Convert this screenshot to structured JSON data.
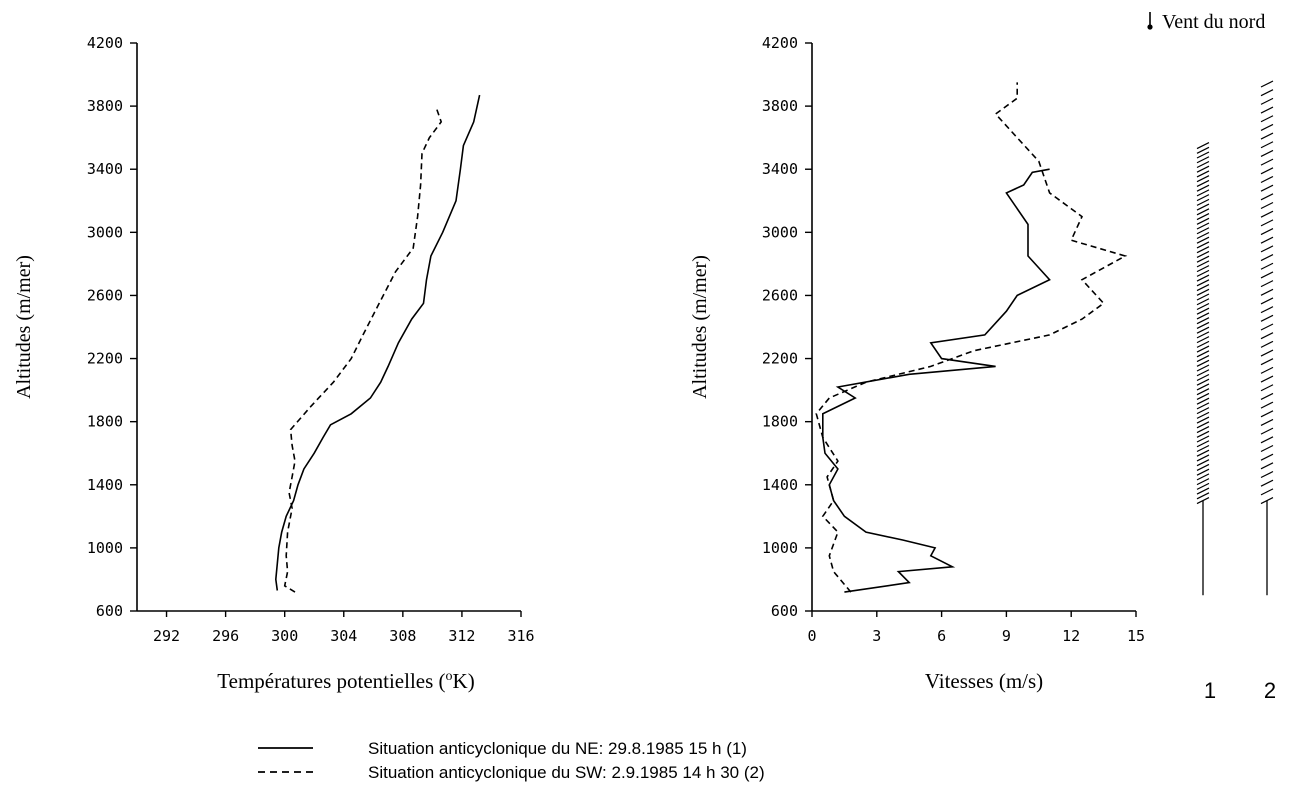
{
  "chart_data": [
    {
      "type": "line",
      "xlabel": "Températures potentielles (",
      "xlabel_sup": "o",
      "xlabel_unit": "K)",
      "ylabel": "Altitudes (m/mer)",
      "xlim": [
        290,
        316
      ],
      "ylim": [
        600,
        4200
      ],
      "x_ticks": [
        "292",
        "296",
        "300",
        "304",
        "308",
        "312",
        "316"
      ],
      "y_ticks": [
        "4200",
        "3800",
        "3400",
        "3000",
        "2600",
        "2200",
        "1800",
        "1400",
        "1000",
        "600"
      ],
      "series": [
        {
          "style": "solid",
          "points": [
            [
              299.5,
              730
            ],
            [
              299.4,
              800
            ],
            [
              299.5,
              900
            ],
            [
              299.6,
              1000
            ],
            [
              299.8,
              1100
            ],
            [
              300.1,
              1200
            ],
            [
              300.6,
              1300
            ],
            [
              300.9,
              1400
            ],
            [
              301.3,
              1500
            ],
            [
              302.0,
              1600
            ],
            [
              302.6,
              1700
            ],
            [
              303.1,
              1780
            ],
            [
              304.5,
              1850
            ],
            [
              305.8,
              1950
            ],
            [
              306.5,
              2050
            ],
            [
              307.0,
              2150
            ],
            [
              307.7,
              2300
            ],
            [
              308.6,
              2450
            ],
            [
              309.4,
              2550
            ],
            [
              309.6,
              2700
            ],
            [
              309.9,
              2850
            ],
            [
              310.7,
              3000
            ],
            [
              311.6,
              3200
            ],
            [
              311.9,
              3400
            ],
            [
              312.1,
              3550
            ],
            [
              312.8,
              3700
            ],
            [
              313.2,
              3870
            ]
          ]
        },
        {
          "style": "dashed",
          "points": [
            [
              300.7,
              720
            ],
            [
              300.0,
              760
            ],
            [
              300.2,
              850
            ],
            [
              300.1,
              950
            ],
            [
              300.2,
              1100
            ],
            [
              300.5,
              1250
            ],
            [
              300.3,
              1350
            ],
            [
              300.5,
              1450
            ],
            [
              300.7,
              1550
            ],
            [
              300.5,
              1650
            ],
            [
              300.4,
              1750
            ],
            [
              301.8,
              1900
            ],
            [
              303.3,
              2050
            ],
            [
              304.5,
              2200
            ],
            [
              305.3,
              2350
            ],
            [
              306.4,
              2550
            ],
            [
              307.5,
              2750
            ],
            [
              308.7,
              2900
            ],
            [
              309.0,
              3100
            ],
            [
              309.2,
              3300
            ],
            [
              309.3,
              3500
            ],
            [
              309.8,
              3600
            ],
            [
              310.6,
              3700
            ],
            [
              310.3,
              3780
            ]
          ]
        }
      ]
    },
    {
      "type": "line",
      "xlabel": "Vitesses (m/s)",
      "ylabel": "Altitudes (m/mer)",
      "xlim": [
        0,
        15
      ],
      "ylim": [
        600,
        4200
      ],
      "x_ticks": [
        "0",
        "3",
        "6",
        "9",
        "12",
        "15"
      ],
      "y_ticks": [
        "4200",
        "3800",
        "3400",
        "3000",
        "2600",
        "2200",
        "1800",
        "1400",
        "1000",
        "600"
      ],
      "series": [
        {
          "style": "solid",
          "points": [
            [
              1.5,
              720
            ],
            [
              4.5,
              780
            ],
            [
              4.0,
              850
            ],
            [
              6.5,
              880
            ],
            [
              5.5,
              950
            ],
            [
              5.7,
              1000
            ],
            [
              4.2,
              1050
            ],
            [
              2.5,
              1100
            ],
            [
              1.5,
              1200
            ],
            [
              1.0,
              1300
            ],
            [
              0.8,
              1400
            ],
            [
              1.2,
              1500
            ],
            [
              0.6,
              1600
            ],
            [
              0.5,
              1700
            ],
            [
              0.5,
              1850
            ],
            [
              2.0,
              1950
            ],
            [
              1.2,
              2020
            ],
            [
              4.5,
              2100
            ],
            [
              8.5,
              2150
            ],
            [
              6.0,
              2200
            ],
            [
              5.5,
              2300
            ],
            [
              8.0,
              2350
            ],
            [
              9.0,
              2500
            ],
            [
              9.5,
              2600
            ],
            [
              11.0,
              2700
            ],
            [
              10.0,
              2850
            ],
            [
              10.0,
              3050
            ],
            [
              9.0,
              3250
            ],
            [
              9.8,
              3300
            ],
            [
              10.2,
              3380
            ],
            [
              11.0,
              3400
            ]
          ]
        },
        {
          "style": "dashed",
          "points": [
            [
              1.8,
              720
            ],
            [
              1.0,
              850
            ],
            [
              0.8,
              950
            ],
            [
              1.2,
              1100
            ],
            [
              0.5,
              1200
            ],
            [
              1.0,
              1300
            ],
            [
              0.7,
              1450
            ],
            [
              1.2,
              1550
            ],
            [
              0.5,
              1700
            ],
            [
              0.2,
              1850
            ],
            [
              0.8,
              1950
            ],
            [
              2.5,
              2050
            ],
            [
              5.5,
              2150
            ],
            [
              7.5,
              2250
            ],
            [
              11.0,
              2350
            ],
            [
              12.5,
              2450
            ],
            [
              13.5,
              2550
            ],
            [
              12.5,
              2700
            ],
            [
              14.5,
              2850
            ],
            [
              12.0,
              2950
            ],
            [
              12.5,
              3100
            ],
            [
              11.0,
              3250
            ],
            [
              10.5,
              3450
            ],
            [
              9.5,
              3600
            ],
            [
              8.5,
              3750
            ],
            [
              9.5,
              3850
            ],
            [
              9.5,
              3950
            ]
          ]
        }
      ],
      "wind_barbs": {
        "title": "Vent du nord",
        "columns": [
          "1",
          "2"
        ]
      }
    }
  ],
  "legend": [
    {
      "style": "solid",
      "label": "Situation anticyclonique du NE: 29.8.1985 15 h (1)"
    },
    {
      "style": "dashed",
      "label": "Situation anticyclonique du SW: 2.9.1985 14 h 30 (2)"
    }
  ]
}
